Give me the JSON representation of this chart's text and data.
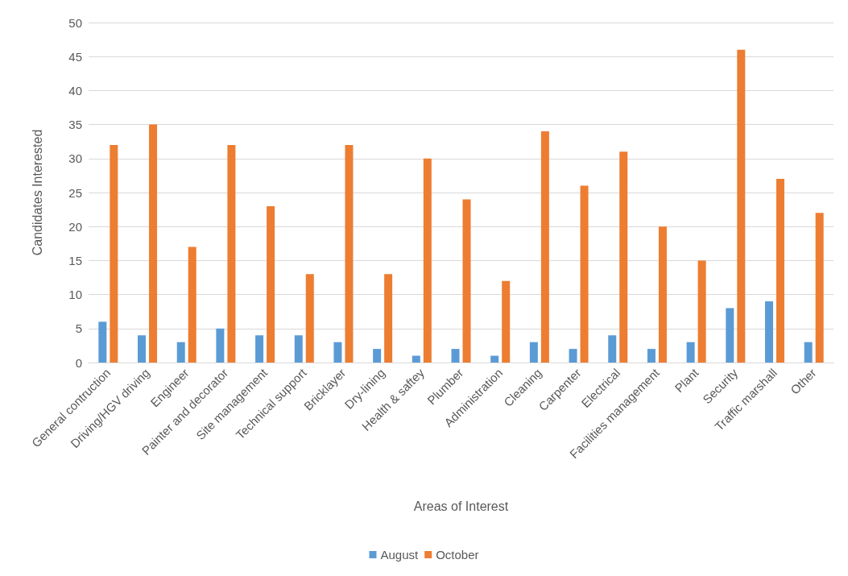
{
  "chart_data": {
    "type": "bar",
    "xlabel": "Areas of Interest",
    "ylabel": "Candidates Interested",
    "categories": [
      "General contruction",
      "Driving/HGV driving",
      "Engineer",
      "Painter and decorator",
      "Site management",
      "Technical support",
      "Bricklayer",
      "Dry-lining",
      "Health & saftey",
      "Plumber",
      "Administration",
      "Cleaning",
      "Carpenter",
      "Electrical",
      "Facilities management",
      "Plant",
      "Security",
      "Traffic marshall",
      "Other"
    ],
    "series": [
      {
        "name": "August",
        "color": "#5b9bd5",
        "values": [
          6,
          4,
          3,
          5,
          4,
          4,
          3,
          2,
          1,
          2,
          1,
          3,
          2,
          4,
          2,
          3,
          8,
          9,
          3
        ]
      },
      {
        "name": "October",
        "color": "#ed7d31",
        "values": [
          32,
          35,
          17,
          32,
          23,
          13,
          32,
          13,
          30,
          24,
          12,
          34,
          26,
          31,
          20,
          15,
          46,
          27,
          22
        ]
      }
    ],
    "ylim": [
      0,
      50
    ],
    "yticks": [
      0,
      5,
      10,
      15,
      20,
      25,
      30,
      35,
      40,
      45,
      50
    ],
    "grid": "y",
    "legend": "bottom"
  }
}
